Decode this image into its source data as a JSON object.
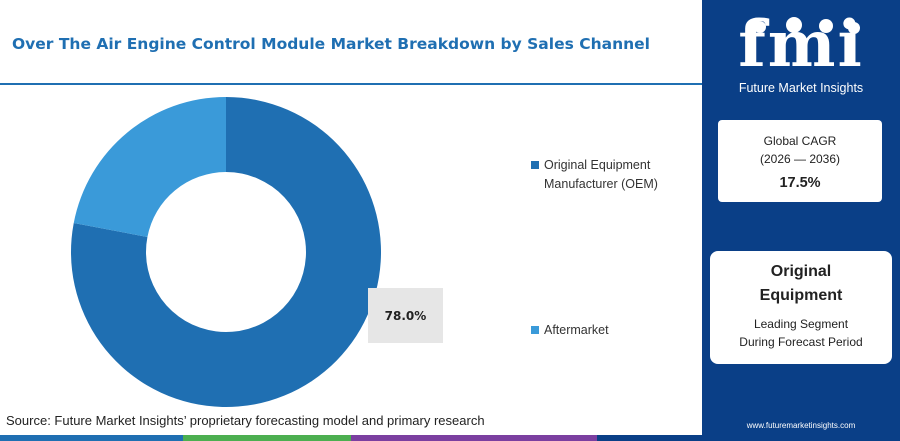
{
  "header": {
    "title": "Over The Air Engine Control Module Market Breakdown by Sales Channel"
  },
  "chart_data": {
    "type": "pie",
    "donut": true,
    "categories": [
      "Original Equipment\nManufacturer (OEM)",
      "Aftermarket"
    ],
    "values": [
      78.0,
      22.0
    ],
    "colors": [
      "#1f6fb2",
      "#3a9ad9"
    ],
    "data_labels": [
      "78.0%"
    ],
    "legend_position": "right"
  },
  "legend": {
    "items": [
      {
        "label": "Original Equipment\nManufacturer (OEM)",
        "color": "#1f6fb2"
      },
      {
        "label": "Aftermarket",
        "color": "#3a9ad9"
      }
    ]
  },
  "source": {
    "text": "Source: Future Market Insights’ proprietary forecasting model and primary research"
  },
  "bottom_bar_colors": [
    "#1f6fb2",
    "#4caf50",
    "#7b3fa0",
    "#0a3f87"
  ],
  "sidebar": {
    "logo_text": "fmi",
    "logo_subtitle": "Future Market Insights",
    "cagr_label_line1": "Global CAGR",
    "cagr_label_line2": "(2026 — 2036)",
    "cagr_value": "17.5%",
    "segment_title_line1": "Original",
    "segment_title_line2": "Equipment",
    "segment_desc_line1": "Leading Segment",
    "segment_desc_line2": "During Forecast Period",
    "website": "www.futuremarketinsights.com",
    "background": "#0a3f87"
  }
}
